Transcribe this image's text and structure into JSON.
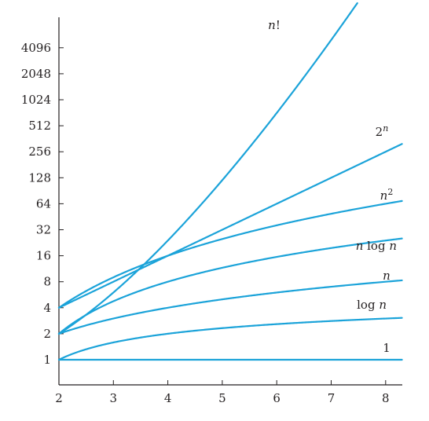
{
  "chart_data": {
    "type": "line",
    "title": "",
    "xlabel": "",
    "ylabel": "",
    "y_scale": "log2",
    "xlim": [
      2,
      8.3
    ],
    "ylim": [
      1,
      8192
    ],
    "x_ticks": [
      "2",
      "3",
      "4",
      "5",
      "6",
      "7",
      "8"
    ],
    "y_ticks": [
      "1",
      "2",
      "4",
      "8",
      "16",
      "32",
      "64",
      "128",
      "256",
      "512",
      "1024",
      "2048",
      "4096"
    ],
    "grid": false,
    "legend": "none",
    "line_color": "#1ba3d9",
    "series": [
      {
        "name": "1",
        "label_parts": [
          {
            "t": "1",
            "i": false
          }
        ],
        "fn": "const"
      },
      {
        "name": "log n",
        "label_parts": [
          {
            "t": "log ",
            "i": false
          },
          {
            "t": "n",
            "i": true
          }
        ],
        "fn": "logn"
      },
      {
        "name": "n",
        "label_parts": [
          {
            "t": "n",
            "i": true
          }
        ],
        "fn": "n"
      },
      {
        "name": "n log n",
        "label_parts": [
          {
            "t": "n",
            "i": true
          },
          {
            "t": " log ",
            "i": false
          },
          {
            "t": "n",
            "i": true
          }
        ],
        "fn": "nlogn"
      },
      {
        "name": "n^2",
        "label_parts": [
          {
            "t": "n",
            "i": true
          },
          {
            "t": "2",
            "i": false,
            "sup": true
          }
        ],
        "fn": "n2"
      },
      {
        "name": "2^n",
        "label_parts": [
          {
            "t": "2",
            "i": false
          },
          {
            "t": "n",
            "i": true,
            "sup": true
          }
        ],
        "fn": "pow2"
      },
      {
        "name": "n!",
        "label_parts": [
          {
            "t": "n",
            "i": true
          },
          {
            "t": "!",
            "i": false
          }
        ],
        "fn": "fact"
      }
    ]
  }
}
